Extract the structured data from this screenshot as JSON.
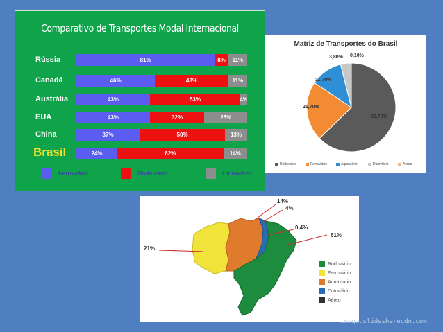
{
  "chart_data": [
    {
      "type": "bar",
      "stacked": true,
      "title": "Comparativo de Transportes Modal Internacional",
      "categories": [
        "Rússia",
        "Canadá",
        "Austrália",
        "EUA",
        "China",
        "Brasil"
      ],
      "series": [
        {
          "name": "Ferroviário",
          "values": [
            81,
            46,
            43,
            43,
            37,
            24
          ],
          "labels": [
            "81%",
            "46%",
            "43%",
            "43%",
            "37%",
            "24%"
          ],
          "color": "#5b5cf0"
        },
        {
          "name": "Rodoviário",
          "values": [
            8,
            43,
            53,
            32,
            50,
            62
          ],
          "labels": [
            "8%",
            "43%",
            "53%",
            "32%",
            "50%",
            "62%"
          ],
          "color": "#ee1111"
        },
        {
          "name": "Hidroviário",
          "values": [
            11,
            11,
            4,
            25,
            13,
            14
          ],
          "labels": [
            "11%",
            "11%",
            "4%",
            "25%",
            "13%",
            "14%"
          ],
          "color": "#8d8d8d"
        }
      ]
    },
    {
      "type": "pie",
      "title": "Matriz de Transportes do Brasil",
      "slices": [
        {
          "name": "Rodoviário",
          "value": 62.7,
          "label": "62,70%",
          "color": "#5a5a5a"
        },
        {
          "name": "Ferroviário",
          "value": 21.7,
          "label": "21,70%",
          "color": "#f28b31"
        },
        {
          "name": "Aquaviário",
          "value": 11.7,
          "label": "11,70%",
          "color": "#2f8fd6"
        },
        {
          "name": "Dutoviário",
          "value": 3.8,
          "label": "3,80%",
          "color": "#c8c8c8"
        },
        {
          "name": "Aéreo",
          "value": 0.1,
          "label": "0,10%",
          "color": "#f7b38a"
        }
      ]
    },
    {
      "type": "pie",
      "subtype": "map",
      "slices": [
        {
          "name": "Rodoviário",
          "value": 61,
          "label": "61%",
          "color": "#1e8c3f"
        },
        {
          "name": "Ferroviário",
          "value": 21,
          "label": "21%",
          "color": "#f2e33a"
        },
        {
          "name": "Aquaviário",
          "value": 14,
          "label": "14%",
          "color": "#e07a2c"
        },
        {
          "name": "Dutoviário",
          "value": 4,
          "label": "4%",
          "color": "#2a6bb5"
        },
        {
          "name": "Aéreo",
          "value": 0.4,
          "label": "0,4%",
          "color": "#333333"
        }
      ]
    }
  ],
  "watermark": "image.slidesharecdn.com"
}
